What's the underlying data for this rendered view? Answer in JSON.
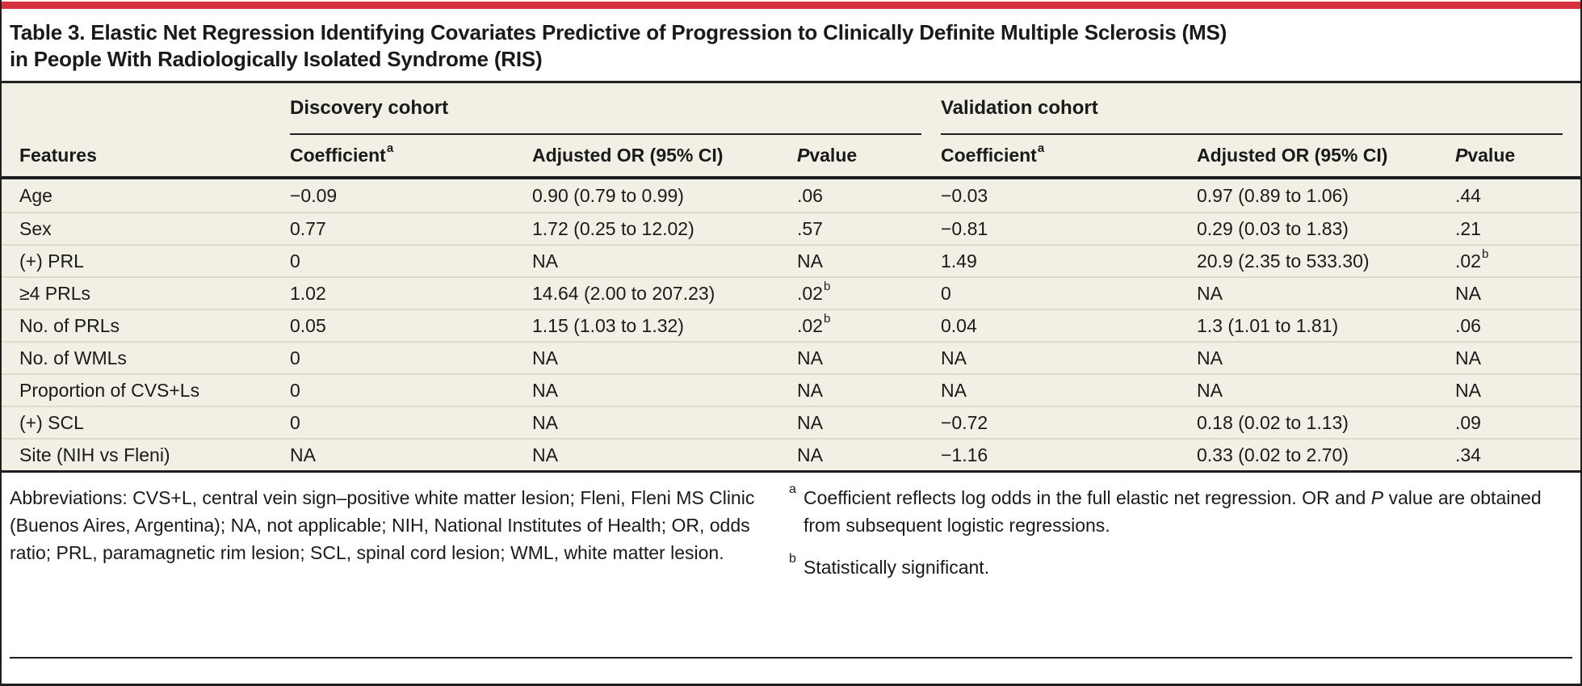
{
  "accent_color": "#d4323f",
  "paper_bg": "#ffffff",
  "table_bg": "#f2f0e4",
  "rule_color": "#1f1f1f",
  "row_divider_color": "#dcdacb",
  "table": {
    "title_line1": "Table 3. Elastic Net Regression Identifying Covariates Predictive of Progression to Clinically Definite Multiple Sclerosis (MS)",
    "title_line2": "in People With Radiologically Isolated Syndrome (RIS)",
    "group_headers": [
      {
        "label": "Discovery cohort"
      },
      {
        "label": "Validation cohort"
      }
    ],
    "columns": [
      {
        "label": "Features"
      },
      {
        "label": "Coefficient",
        "sup": "a"
      },
      {
        "label": "Adjusted OR (95% CI)"
      },
      {
        "italic": "P",
        "label": " value"
      },
      {
        "label": "Coefficient",
        "sup": "a"
      },
      {
        "label": "Adjusted OR (95% CI)"
      },
      {
        "italic": "P",
        "label": " value"
      }
    ],
    "rows": [
      [
        "Age",
        "−0.09",
        "0.90 (0.79 to 0.99)",
        ".06",
        "−0.03",
        "0.97 (0.89 to 1.06)",
        ".44"
      ],
      [
        "Sex",
        "0.77",
        "1.72 (0.25 to 12.02)",
        ".57",
        "−0.81",
        "0.29 (0.03 to 1.83)",
        ".21"
      ],
      [
        "(+) PRL",
        "0",
        "NA",
        "NA",
        "1.49",
        "20.9 (2.35 to 533.30)",
        ".02^b"
      ],
      [
        "≥4 PRLs",
        "1.02",
        "14.64 (2.00 to 207.23)",
        ".02^b",
        "0",
        "NA",
        "NA"
      ],
      [
        "No. of PRLs",
        "0.05",
        "1.15 (1.03 to 1.32)",
        ".02^b",
        "0.04",
        "1.3 (1.01 to 1.81)",
        ".06"
      ],
      [
        "No. of WMLs",
        "0",
        "NA",
        "NA",
        "NA",
        "NA",
        "NA"
      ],
      [
        "Proportion of CVS+Ls",
        "0",
        "NA",
        "NA",
        "NA",
        "NA",
        "NA"
      ],
      [
        "(+) SCL",
        "0",
        "NA",
        "NA",
        "−0.72",
        "0.18 (0.02 to 1.13)",
        ".09"
      ],
      [
        "Site (NIH vs Fleni)",
        "NA",
        "NA",
        "NA",
        "−1.16",
        "0.33 (0.02 to 2.70)",
        ".34"
      ]
    ]
  },
  "footnotes": {
    "abbreviations": "Abbreviations: CVS+L, central vein sign–positive white matter lesion; Fleni, Fleni MS Clinic (Buenos Aires, Argentina); NA, not applicable; NIH, National Institutes of Health; OR, odds ratio; PRL, paramagnetic rim lesion; SCL, spinal cord lesion; WML, white matter lesion.",
    "a": {
      "marker": "a",
      "text_before": "Coefficient reflects log odds in the full elastic net regression. OR and ",
      "italic": "P",
      "text_after": " value are obtained from subsequent logistic regressions."
    },
    "b": {
      "marker": "b",
      "text": "Statistically significant."
    }
  }
}
